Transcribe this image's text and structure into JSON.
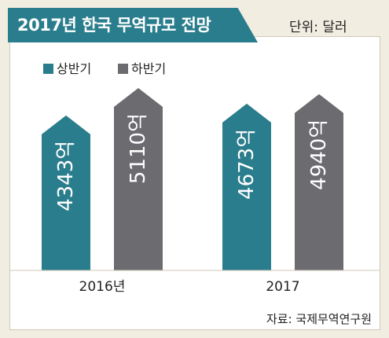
{
  "title": "2017년 한국 무역규모 전망",
  "unit_label": "단위: 달러",
  "source": "자료: 국제무역연구원",
  "colors": {
    "first_half": "#2a7d8c",
    "second_half": "#6b6b70",
    "title_bg": "#2a7d8c"
  },
  "chart_data": {
    "type": "bar",
    "title": "2017년 한국 무역규모 전망",
    "unit": "단위: 달러",
    "categories": [
      "2016년",
      "2017"
    ],
    "series": [
      {
        "name": "상반기",
        "values": [
          4343,
          4673
        ],
        "labels": [
          "4343억",
          "4673억"
        ]
      },
      {
        "name": "하반기",
        "values": [
          5110,
          4940
        ],
        "labels": [
          "5110억",
          "4940억"
        ]
      }
    ],
    "legend": "top-left",
    "grid": false
  }
}
